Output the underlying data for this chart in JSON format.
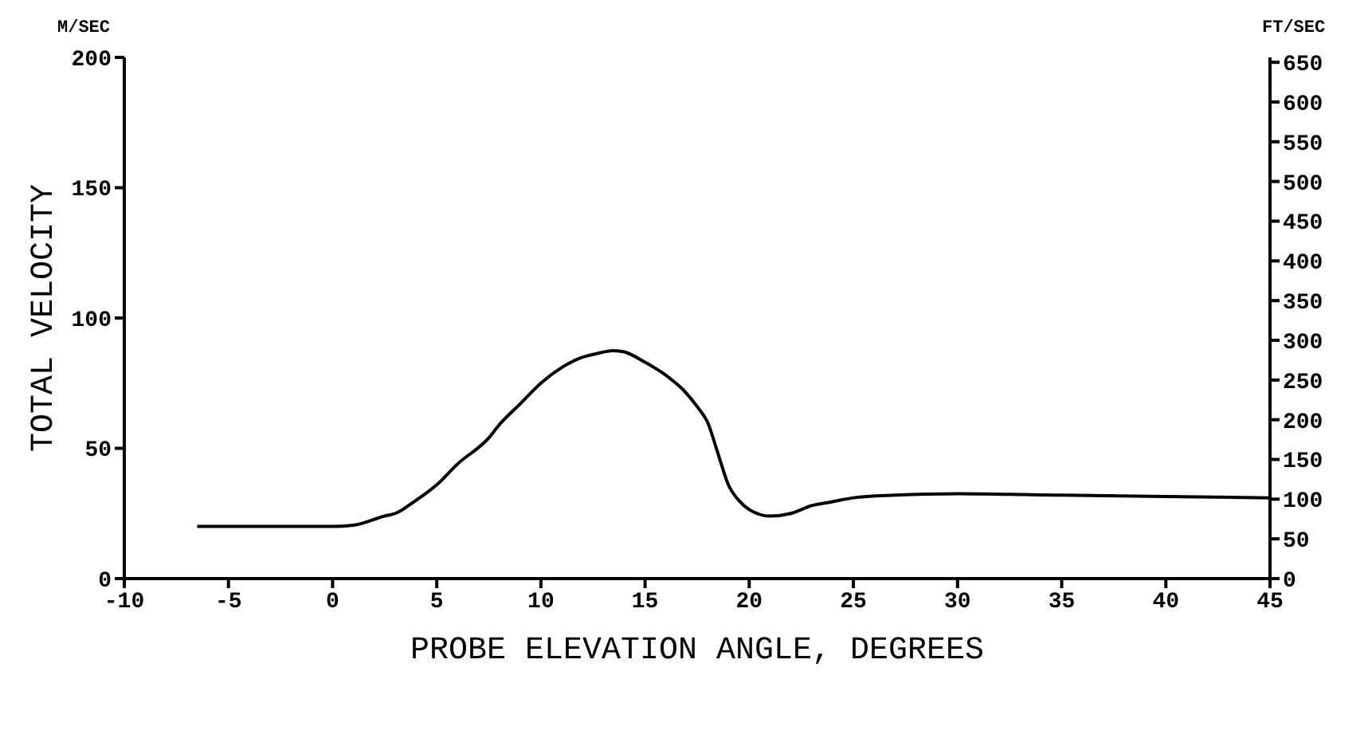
{
  "chart_data": {
    "type": "line",
    "xlabel": "PROBE ELEVATION ANGLE, DEGREES",
    "ylabel": "TOTAL VELOCITY",
    "annotations": [
      "M/SEC",
      "FT/SEC"
    ],
    "x": [
      -6.5,
      -3,
      0,
      1,
      2.5,
      3,
      4,
      5,
      6,
      7.5,
      8,
      9,
      10,
      11,
      12,
      12.5,
      13.5,
      14,
      15,
      16,
      17,
      17.5,
      18,
      18.5,
      19,
      19.5,
      20,
      21,
      22,
      23,
      24,
      25,
      27,
      30,
      35,
      40,
      45
    ],
    "series": [
      {
        "color": "#000000",
        "values": [
          20,
          20,
          20,
          20.5,
          24,
          25,
          30,
          36,
          44,
          54,
          59,
          67,
          75,
          81,
          85,
          86,
          87.5,
          87,
          83,
          78,
          71,
          66,
          60,
          48,
          36,
          30,
          26.5,
          24,
          25,
          28,
          29.5,
          31,
          32,
          32.6,
          32,
          31.5,
          31
        ]
      }
    ],
    "xlim": [
      -10,
      45
    ],
    "xticks": [
      -10,
      -5,
      0,
      5,
      10,
      15,
      20,
      25,
      30,
      35,
      40,
      45
    ],
    "ylim": [
      0,
      200
    ],
    "yticks": [
      0,
      50,
      100,
      150,
      200
    ],
    "y2lim": [
      0,
      656.2
    ],
    "y2ticks": [
      0,
      50,
      100,
      150,
      200,
      250,
      300,
      350,
      400,
      450,
      500,
      550,
      600,
      650
    ],
    "grid": false,
    "legend": false,
    "marker": "none",
    "line_style": "solid"
  }
}
